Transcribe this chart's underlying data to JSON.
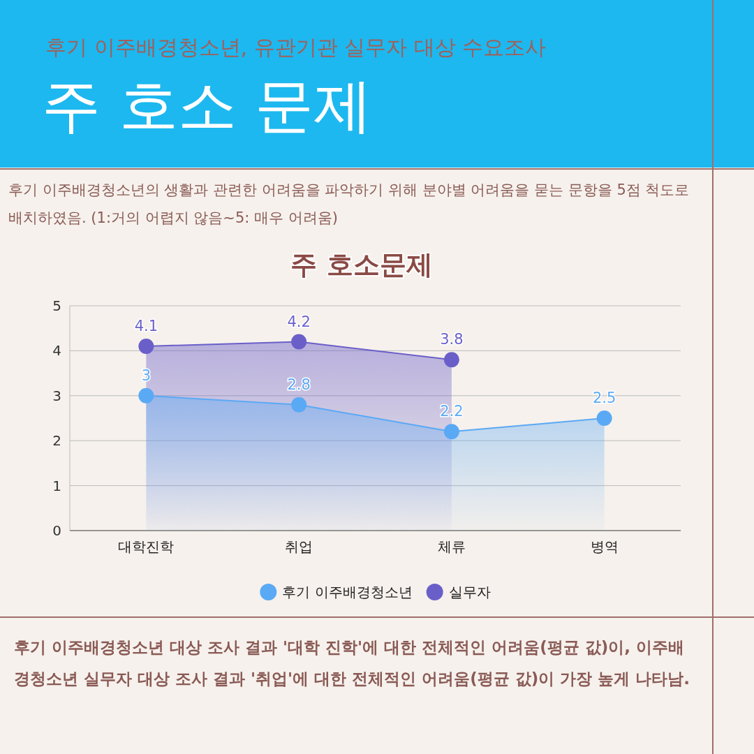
{
  "chart_data": {
    "type": "area",
    "subtitle": "후기 이주배경청소년, 유관기관 실무자 대상 수요조사",
    "title": "주 호소 문제",
    "annotations": [
      "후기 이주배경청소년의 생활과 관련한 어려움을 파악하기 위해 분야별 어려움을 묻는 문항을 5점 척도로 배치하였음.  (1:거의 어렵지 않음~5: 매우 어려움)",
      "주 호소문제",
      "후기 이주배경청소년 대상 조사 결과 '대학 진학'에 대한 전체적인 어려움(평균 값)이, 이주배경청소년 실무자 대상 조사 결과 '취업'에 대한 전체적인 어려움(평균 값)이 가장 높게 나타남."
    ],
    "categories": [
      "대학진학",
      "취업",
      "체류",
      "병역"
    ],
    "series": [
      {
        "name": "후기 이주배경청소년",
        "color": "#5aa9f5",
        "values": [
          3,
          2.8,
          2.2,
          2.5
        ]
      },
      {
        "name": "실무자",
        "color": "#6a5fc9",
        "values": [
          4.1,
          4.2,
          3.8,
          null
        ]
      }
    ],
    "ylim": [
      0,
      5
    ],
    "yticks": [
      0,
      1,
      2,
      3,
      4,
      5
    ],
    "grid": "y",
    "legend": "bottom",
    "marker": "circle",
    "data_labels": true
  }
}
